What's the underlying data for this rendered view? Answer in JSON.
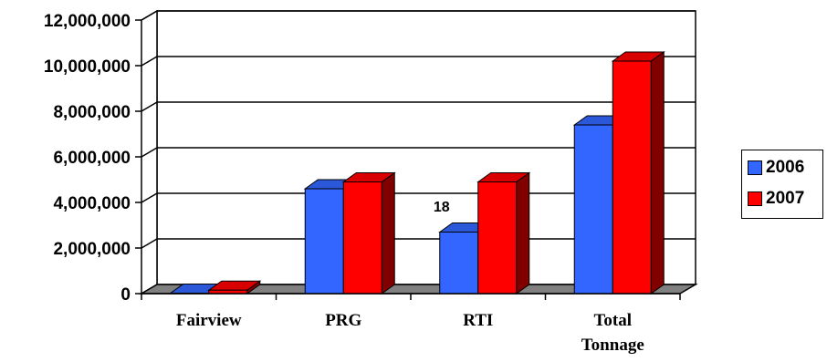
{
  "chart_data": {
    "type": "bar",
    "categories": [
      "Fairview",
      "PRG",
      "RTI",
      "Total Tonnage"
    ],
    "series": [
      {
        "name": "2006",
        "color": "#3366ff",
        "values": [
          20000,
          4600000,
          2700000,
          7400000
        ]
      },
      {
        "name": "2007",
        "color": "#ff0000",
        "values": [
          150000,
          4900000,
          4900000,
          10200000
        ]
      }
    ],
    "yticks": [
      "0",
      "2,000,000",
      "4,000,000",
      "6,000,000",
      "8,000,000",
      "10,000,000",
      "12,000,000"
    ],
    "ylim": [
      0,
      12000000
    ],
    "grid": true,
    "legend_position": "right",
    "annotations": [
      {
        "text": "18",
        "x": "RTI",
        "y": 4000000
      }
    ]
  }
}
